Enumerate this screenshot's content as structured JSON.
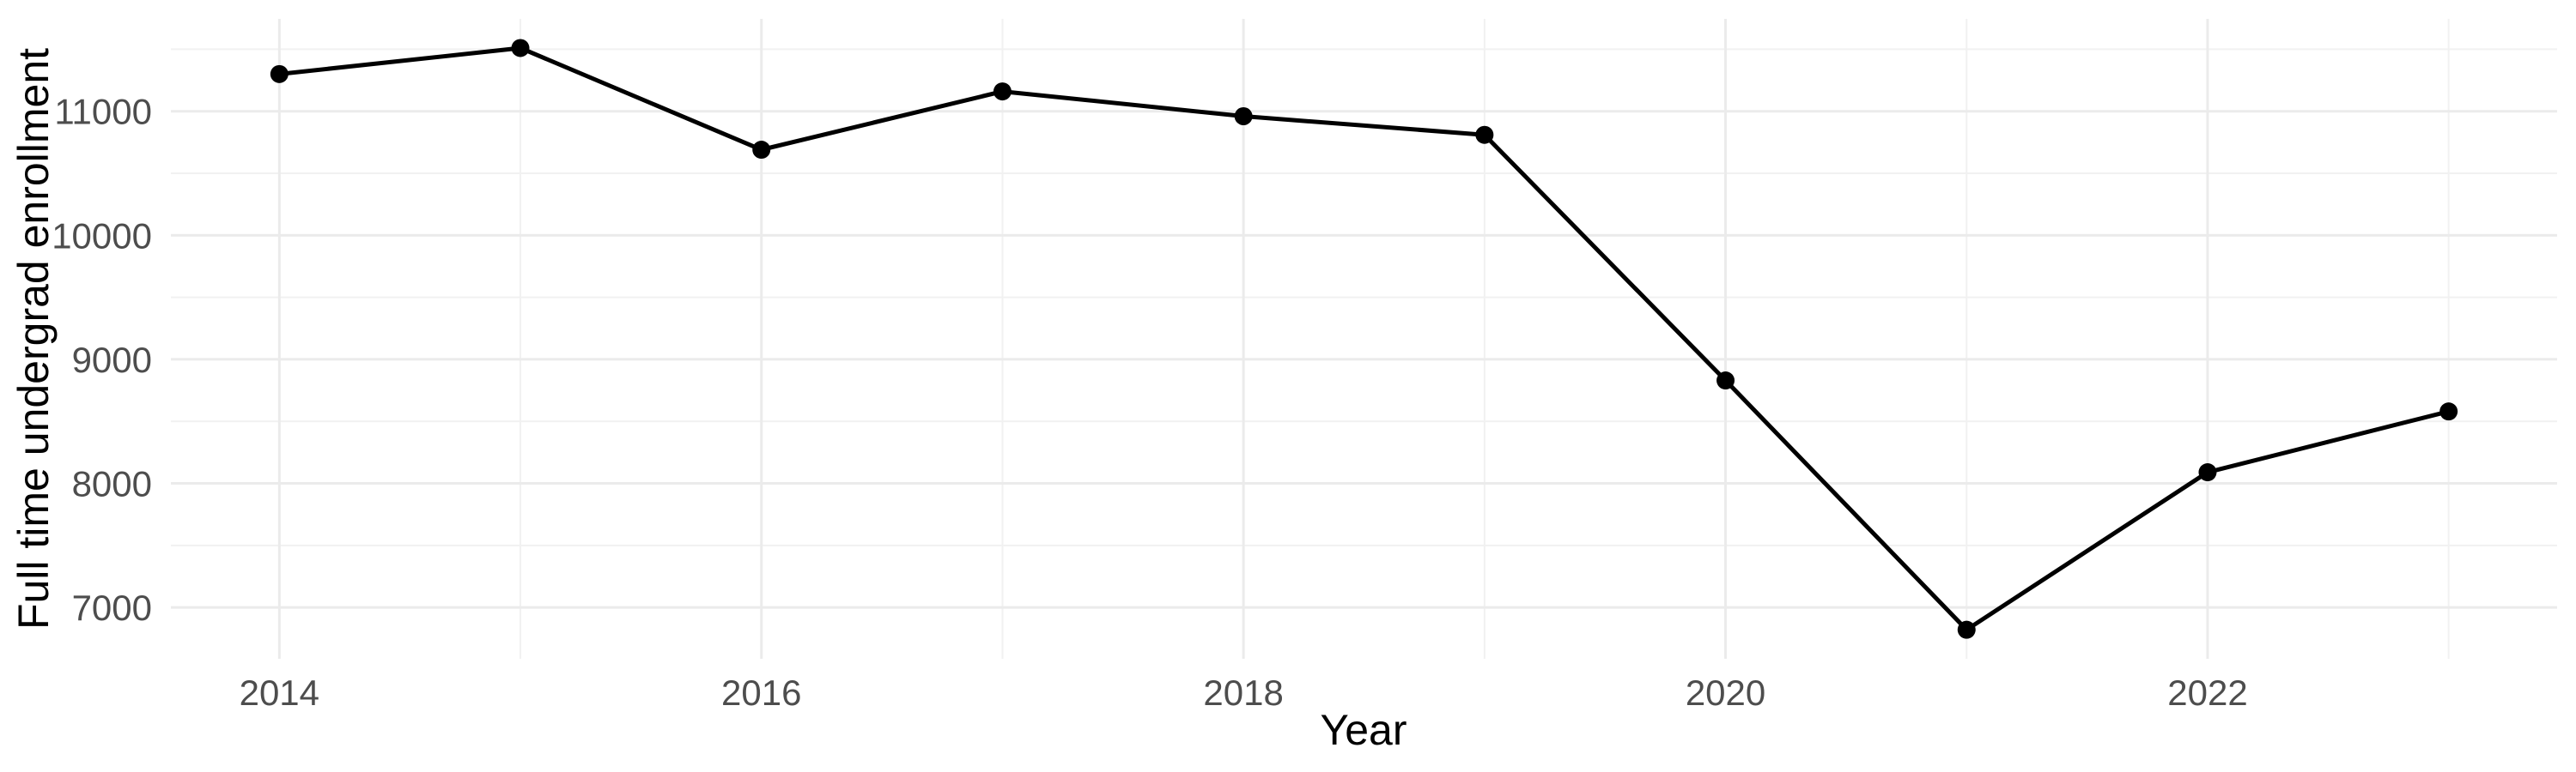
{
  "chart_data": {
    "type": "line",
    "title": "",
    "xlabel": "Year",
    "ylabel": "Full time undergrad enrollment",
    "x": [
      2014,
      2015,
      2016,
      2017,
      2018,
      2019,
      2020,
      2021,
      2022,
      2023
    ],
    "series": [
      {
        "name": "Full time undergrad enrollment",
        "values": [
          11300,
          11510,
          10690,
          11160,
          10960,
          10810,
          8830,
          6820,
          8090,
          8580
        ]
      }
    ],
    "x_tick_labels": [
      "2014",
      "2016",
      "2018",
      "2020",
      "2022"
    ],
    "x_ticks": [
      2014,
      2016,
      2018,
      2020,
      2022
    ],
    "x_minor_breaks": [
      2015,
      2017,
      2019,
      2021,
      2023
    ],
    "y_tick_labels": [
      "7000",
      "8000",
      "9000",
      "10000",
      "11000"
    ],
    "y_ticks": [
      7000,
      8000,
      9000,
      10000,
      11000
    ],
    "y_minor_breaks": [
      7500,
      8500,
      9500,
      10500,
      11500
    ],
    "xlim": [
      2013.55,
      2023.45
    ],
    "ylim": [
      6586,
      11745
    ],
    "grid": "major+minor",
    "legend": false,
    "colors": {
      "line": "#000000",
      "point": "#000000",
      "grid_major": "#ebebeb",
      "grid_minor": "#f1f1f1",
      "tick_label": "#4d4d4d",
      "axis_title": "#000000",
      "background": "#ffffff"
    }
  }
}
